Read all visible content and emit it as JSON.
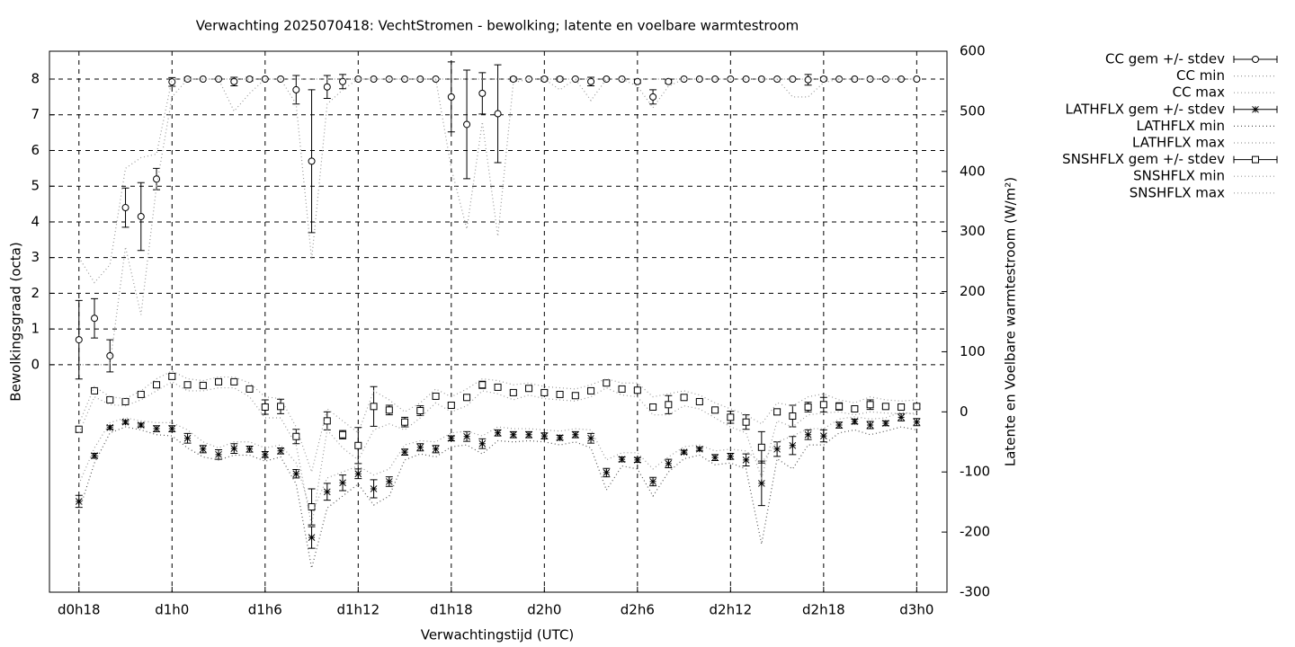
{
  "chart_data": {
    "type": "errorbar",
    "title": "Verwachting 2025070418: VechtStromen - bewolking; latente en voelbare warmtestroom",
    "xlabel": "Verwachtingstijd (UTC)",
    "ylabel": "Bewolkingsgraad (octa)",
    "y2label": "Latente en Voelbare warmtestroom (W/m²)",
    "x": [
      18,
      19,
      20,
      21,
      22,
      23,
      24,
      25,
      26,
      27,
      28,
      29,
      30,
      31,
      32,
      33,
      34,
      35,
      36,
      37,
      38,
      39,
      40,
      41,
      42,
      43,
      44,
      45,
      46,
      47,
      48,
      49,
      50,
      51,
      52,
      53,
      54,
      55,
      56,
      57,
      58,
      59,
      60,
      61,
      62,
      63,
      64,
      65,
      66,
      67,
      68,
      69,
      70,
      71,
      72
    ],
    "xlim": [
      16.1,
      73.95
    ],
    "xticks": [
      {
        "value": 18,
        "label": "d0h18"
      },
      {
        "value": 24,
        "label": "d1h0"
      },
      {
        "value": 30,
        "label": "d1h6"
      },
      {
        "value": 36,
        "label": "d1h12"
      },
      {
        "value": 42,
        "label": "d1h18"
      },
      {
        "value": 48,
        "label": "d2h0"
      },
      {
        "value": 54,
        "label": "d2h6"
      },
      {
        "value": 60,
        "label": "d2h12"
      },
      {
        "value": 66,
        "label": "d2h18"
      },
      {
        "value": 72,
        "label": "d3h0"
      }
    ],
    "ylim": [
      -6.37,
      8.78
    ],
    "yticks": [
      0,
      1,
      2,
      3,
      4,
      5,
      6,
      7,
      8
    ],
    "y2lim": [
      -300,
      600
    ],
    "y2ticks": [
      -300,
      -200,
      -100,
      0,
      100,
      200,
      300,
      400,
      500,
      600
    ],
    "grid": true,
    "legend": "outside-right",
    "series": [
      {
        "name": "CC gem +/- stdev",
        "color": "#000000",
        "marker": "circle",
        "axis": "y",
        "values": [
          0.7,
          1.3,
          0.25,
          4.4,
          4.15,
          5.2,
          7.92,
          8,
          8,
          8,
          7.93,
          8,
          8,
          8,
          7.7,
          5.7,
          7.78,
          7.93,
          8,
          8,
          8,
          8,
          8,
          8,
          7.5,
          6.73,
          7.6,
          7.03,
          8,
          8,
          8,
          8,
          8,
          7.93,
          8,
          8,
          7.93,
          7.5,
          7.93,
          8,
          8,
          8,
          8,
          8,
          8,
          8,
          8,
          7.98,
          8,
          8,
          8,
          8,
          8,
          8,
          8
        ],
        "errors": [
          1.1,
          0.55,
          0.45,
          0.55,
          0.95,
          0.3,
          0.12,
          0.05,
          0,
          0,
          0.12,
          0.05,
          0,
          0,
          0.4,
          2.0,
          0.32,
          0.2,
          0,
          0,
          0,
          0,
          0,
          0,
          0.98,
          1.52,
          0.58,
          1.37,
          0.05,
          0,
          0.05,
          0.05,
          0,
          0.12,
          0,
          0,
          0.05,
          0.2,
          0.05,
          0,
          0,
          0,
          0,
          0,
          0,
          0,
          0,
          0.15,
          0.05,
          0,
          0,
          0,
          0,
          0,
          0
        ]
      },
      {
        "name": "CC min",
        "color": "#999999",
        "line": "dotted",
        "axis": "y",
        "values": [
          0,
          0,
          0,
          3.3,
          1.4,
          5,
          7.5,
          8,
          8,
          8,
          7.1,
          7.6,
          8,
          8,
          7.3,
          2.95,
          7.3,
          7.7,
          8,
          8,
          8,
          8,
          8,
          8,
          5.5,
          3.8,
          6.8,
          3.6,
          7.9,
          8,
          8,
          7.7,
          8,
          7.4,
          8,
          8,
          7.8,
          7.2,
          7.8,
          8,
          8,
          8,
          8,
          8,
          8,
          8,
          7.5,
          7.5,
          7.9,
          8,
          8,
          8,
          8,
          8,
          8
        ]
      },
      {
        "name": "CC max",
        "color": "#999999",
        "line": "dotted",
        "axis": "y",
        "values": [
          3,
          2.3,
          2.8,
          5.5,
          5.8,
          5.9,
          8,
          8,
          8,
          8,
          8,
          8,
          8,
          8,
          8,
          8,
          8,
          8,
          8,
          8,
          8,
          8,
          8,
          8,
          8,
          8,
          8,
          8,
          8,
          8,
          8,
          8,
          8,
          8,
          8,
          8,
          8,
          8,
          8,
          8,
          8,
          8,
          8,
          8,
          8,
          8,
          8,
          8,
          8,
          8,
          8,
          8,
          8,
          8,
          8
        ]
      },
      {
        "name": "LATHFLX gem +/- stdev",
        "color": "#000000",
        "marker": "star",
        "axis": "y2",
        "values": [
          -149,
          -73,
          -26,
          -17,
          -22,
          -28,
          -28,
          -44,
          -62,
          -71,
          -61,
          -62,
          -71,
          -65,
          -103,
          -209,
          -133,
          -118,
          -103,
          -128,
          -116,
          -67,
          -59,
          -62,
          -44,
          -41,
          -53,
          -35,
          -38,
          -38,
          -40,
          -43,
          -38,
          -44,
          -101,
          -79,
          -80,
          -116,
          -86,
          -67,
          -62,
          -76,
          -74,
          -80,
          -119,
          -62,
          -56,
          -38,
          -40,
          -22,
          -16,
          -22,
          -19,
          -9,
          -17
        ],
        "errors": [
          10,
          4,
          3,
          3,
          3,
          5,
          5,
          8,
          6,
          8,
          8,
          5,
          5,
          5,
          7,
          18,
          14,
          13,
          8,
          15,
          8,
          5,
          6,
          6,
          4,
          8,
          8,
          5,
          5,
          5,
          5,
          4,
          5,
          8,
          7,
          4,
          4,
          7,
          7,
          3,
          3,
          5,
          5,
          10,
          37,
          12,
          15,
          8,
          10,
          5,
          4,
          6,
          4,
          6,
          6
        ]
      },
      {
        "name": "LATHFLX min",
        "color": "#555555",
        "line": "dotted",
        "axis": "y2",
        "values": [
          -165,
          -85,
          -35,
          -25,
          -30,
          -38,
          -40,
          -60,
          -75,
          -80,
          -72,
          -72,
          -82,
          -75,
          -120,
          -260,
          -160,
          -140,
          -120,
          -155,
          -140,
          -80,
          -70,
          -75,
          -58,
          -55,
          -70,
          -48,
          -50,
          -48,
          -50,
          -55,
          -50,
          -60,
          -130,
          -90,
          -95,
          -140,
          -100,
          -78,
          -72,
          -88,
          -85,
          -95,
          -220,
          -78,
          -95,
          -55,
          -55,
          -35,
          -30,
          -38,
          -32,
          -25,
          -30
        ]
      },
      {
        "name": "LATHFLX max",
        "color": "#999999",
        "line": "dotted",
        "axis": "y2",
        "values": [
          -120,
          -60,
          -18,
          -10,
          -15,
          -18,
          -18,
          -30,
          -50,
          -60,
          -50,
          -50,
          -60,
          -55,
          -85,
          -170,
          -110,
          -100,
          -90,
          -105,
          -95,
          -55,
          -48,
          -50,
          -35,
          -32,
          -40,
          -25,
          -28,
          -28,
          -30,
          -32,
          -28,
          -30,
          -80,
          -68,
          -68,
          -95,
          -75,
          -58,
          -55,
          -65,
          -62,
          -65,
          -85,
          -50,
          -40,
          -28,
          -28,
          -12,
          -8,
          -12,
          -10,
          0,
          -5
        ]
      },
      {
        "name": "SNSHFLX gem +/- stdev",
        "color": "#000000",
        "marker": "square",
        "axis": "y2",
        "values": [
          -29,
          35,
          20,
          17,
          29,
          45,
          59,
          45,
          44,
          50,
          50,
          38,
          8,
          9,
          -41,
          -158,
          -15,
          -38,
          -56,
          9,
          3,
          -17,
          2,
          26,
          11,
          24,
          45,
          41,
          32,
          39,
          32,
          29,
          27,
          35,
          48,
          38,
          36,
          8,
          12,
          24,
          17,
          3,
          -9,
          -17,
          -59,
          0,
          -7,
          8,
          12,
          9,
          5,
          12,
          9,
          8,
          9
        ],
        "errors": [
          5,
          3,
          3,
          3,
          3,
          3,
          4,
          3,
          3,
          3,
          3,
          3,
          12,
          12,
          12,
          30,
          15,
          7,
          30,
          33,
          8,
          8,
          8,
          4,
          4,
          4,
          6,
          3,
          3,
          3,
          3,
          3,
          3,
          3,
          3,
          3,
          3,
          4,
          15,
          3,
          3,
          3,
          10,
          12,
          26,
          5,
          18,
          8,
          12,
          6,
          3,
          8,
          3,
          3,
          3
        ]
      },
      {
        "name": "SNSHFLX min",
        "color": "#999999",
        "line": "dotted",
        "axis": "y2",
        "values": [
          -35,
          25,
          12,
          10,
          20,
          35,
          50,
          35,
          35,
          40,
          40,
          25,
          -10,
          -10,
          -55,
          -190,
          -30,
          -60,
          -80,
          -30,
          -20,
          -30,
          -10,
          15,
          0,
          10,
          35,
          30,
          20,
          28,
          22,
          20,
          18,
          25,
          40,
          28,
          25,
          -5,
          -5,
          10,
          5,
          -10,
          -25,
          -35,
          -110,
          -15,
          -25,
          -5,
          -2,
          0,
          -5,
          0,
          -2,
          -3,
          -2
        ]
      },
      {
        "name": "SNSHFLX max",
        "color": "#999999",
        "line": "dotted",
        "axis": "y2",
        "values": [
          -20,
          42,
          25,
          22,
          35,
          55,
          68,
          55,
          52,
          58,
          58,
          48,
          25,
          22,
          -25,
          -100,
          5,
          -15,
          -35,
          35,
          20,
          0,
          15,
          38,
          25,
          38,
          55,
          52,
          45,
          48,
          42,
          40,
          38,
          45,
          55,
          48,
          48,
          25,
          30,
          35,
          28,
          15,
          5,
          -5,
          -20,
          15,
          10,
          25,
          30,
          20,
          15,
          25,
          20,
          18,
          20
        ]
      }
    ]
  }
}
